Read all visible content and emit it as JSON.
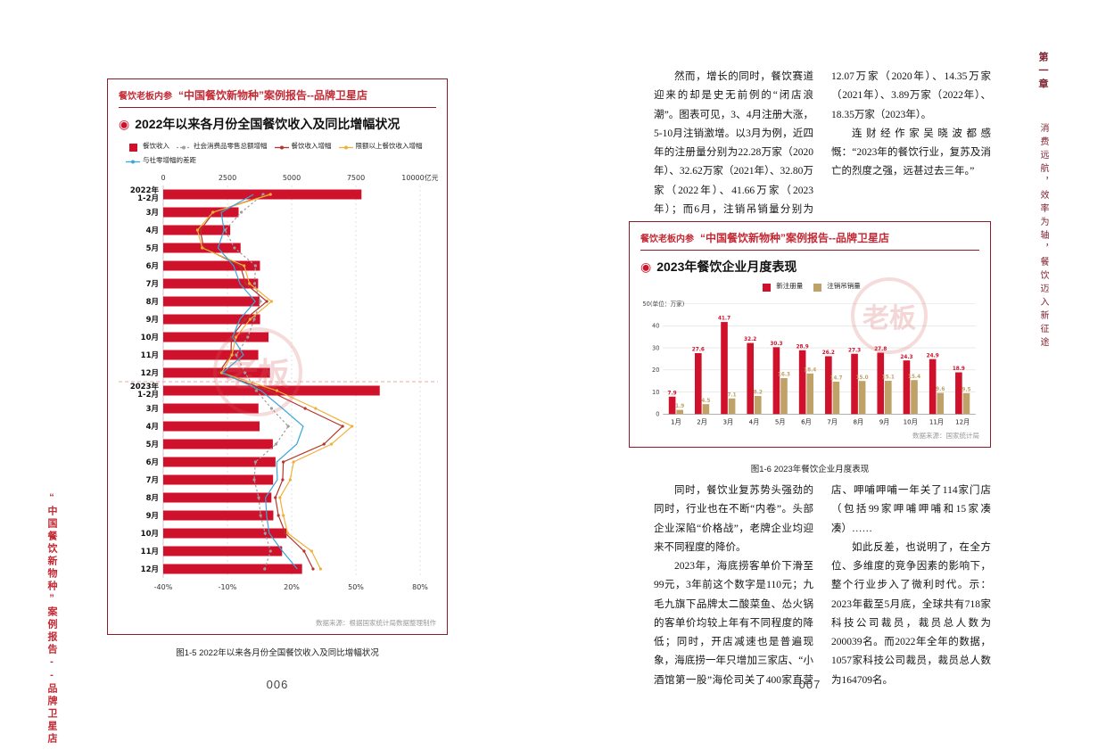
{
  "accent_colors": {
    "bar_red": "#d0112b",
    "header_red": "#c22a35",
    "box_border": "#8c1c2c",
    "tan": "#bfa268",
    "orange": "#f0b13c",
    "dark_red_line": "#b5342c",
    "blue": "#3aa7d9",
    "gray_line": "#9e9e9e"
  },
  "left_page": {
    "margin_text": "“中国餐饮新物种”案例报告--品牌卫星店",
    "page_number": "006",
    "box": {
      "brand": "餐饮老板内参",
      "header": "“中国餐饮新物种”案例报告--品牌卫星店",
      "title": "2022年以来各月份全国餐饮收入及同比增幅状况",
      "watermark": "老板",
      "legend": [
        {
          "label": "餐饮收入",
          "type": "bar",
          "color": "#d0112b"
        },
        {
          "label": "社会消费品零售总额增幅",
          "type": "line",
          "dashed": true,
          "color": "#9e9e9e"
        },
        {
          "label": "餐饮收入增幅",
          "type": "line",
          "dashed": false,
          "color": "#b5342c"
        },
        {
          "label": "限额以上餐饮收入增幅",
          "type": "line",
          "dashed": false,
          "color": "#f0b13c"
        },
        {
          "label": "与社零增幅的差距",
          "type": "line",
          "dashed": false,
          "color": "#3aa7d9"
        }
      ]
    },
    "caption": "图1-5 2022年以来各月份全国餐饮收入及同比增幅状况"
  },
  "right_page": {
    "page_number": "007",
    "chapter_vertical": {
      "part1": "第一章",
      "part2": "消费远航，效率为轴，餐饮迈入新征途"
    },
    "top_text": {
      "p1": "然而，增长的同时，餐饮赛道迎来的却是史无前例的“闭店浪潮”。图表可见，3、4月注册大涨，5-10月注销激增。以3月为例，近四年的注册量分别为22.28万家（2020年）、32.62万家（2021年）、32.80万家（2022年）、41.66万家（2023年）；而6月，注销吊销量分别为12.07万家（2020年）、14.35万家（2021年）、3.89万家（2022年）、18.35万家（2023年）。",
      "p2": "连财经作家吴晓波都感慨：“2023年的餐饮行业，复苏及消亡的烈度之强，远甚过去三年。”"
    },
    "box": {
      "brand": "餐饮老板内参",
      "header": "“中国餐饮新物种”案例报告--品牌卫星店",
      "title": "2023年餐饮企业月度表现",
      "watermark": "老板",
      "legend": [
        {
          "label": "新注册量",
          "type": "bar",
          "color": "#d0112b"
        },
        {
          "label": "注销吊销量",
          "type": "bar",
          "color": "#bfa268"
        }
      ]
    },
    "caption": "图1-6 2023年餐饮企业月度表现",
    "bottom_text": {
      "p1": "同时，餐饮业复苏势头强劲的同时，行业也在不断“内卷”。头部企业深陷“价格战”，老牌企业均迎来不同程度的降价。",
      "p2": "2023年，海底捞客单价下滑至99元，3年前这个数字是110元；九毛九旗下品牌太二酸菜鱼、怂火锅的客单价均较上年有不同程度的降低；同时，开店减速也是普遍现象，海底捞一年只增加三家店、“小酒馆第一股”海伦司关了400家直营店、呷哺呷哺一年关了114家门店（包括99家呷哺呷哺和15家凑凑）……",
      "p3": "如此反差，也说明了，在全方位、多维度的竞争因素的影响下，整个行业步入了微利时代。示：2023年截至5月底，全球共有718家科技公司裁员，裁员总人数为200039名。而2022年全年的数据，1057家科技公司裁员，裁员总人数为164709名。"
    }
  },
  "chart_data": [
    {
      "type": "bar",
      "orientation": "horizontal",
      "title": "2022年以来各月份全国餐饮收入及同比增幅状况",
      "categories": [
        "2022年|1-2月",
        "3月",
        "4月",
        "5月",
        "6月",
        "7月",
        "8月",
        "9月",
        "10月",
        "11月",
        "12月",
        "2023年|1-2月",
        "3月",
        "4月",
        "5月",
        "6月",
        "7月",
        "8月",
        "9月",
        "10月",
        "11月",
        "12月"
      ],
      "bar_series": {
        "name": "餐饮收入",
        "unit": "亿元",
        "color": "#d0112b",
        "values": [
          7718,
          2935,
          2609,
          3012,
          3766,
          3694,
          3748,
          3770,
          4099,
          3701,
          4157,
          8429,
          3707,
          3751,
          4267,
          4371,
          4277,
          4212,
          4287,
          4800,
          4628,
          5405
        ]
      },
      "top_axis": {
        "ticks": [
          0,
          2500,
          5000,
          7500,
          10000
        ],
        "labels": [
          "0",
          "2500",
          "5000",
          "7500",
          "10000亿元"
        ]
      },
      "bottom_axis": {
        "min": -40,
        "max": 80,
        "ticks": [
          -40,
          -10,
          20,
          50,
          80
        ],
        "labels": [
          "-40%",
          "-10%",
          "20%",
          "50%",
          "80%"
        ]
      },
      "line_series": [
        {
          "name": "社会消费品零售总额增幅",
          "color": "#9e9e9e",
          "dashed": true,
          "markers": true,
          "values": [
            6.7,
            -3.5,
            -11.1,
            -6.7,
            3.1,
            2.7,
            5.4,
            2.5,
            -0.5,
            -5.9,
            -1.8,
            3.5,
            10.6,
            18.4,
            12.7,
            3.1,
            2.5,
            4.6,
            5.5,
            7.6,
            10.1,
            7.4
          ]
        },
        {
          "name": "餐饮收入增幅",
          "color": "#b5342c",
          "dashed": false,
          "markers": true,
          "values": [
            8.9,
            -16.4,
            -22.7,
            -21.1,
            -4.0,
            -1.5,
            8.4,
            -1.7,
            -8.1,
            -8.4,
            -14.1,
            9.2,
            26.3,
            43.8,
            35.1,
            16.1,
            15.8,
            12.4,
            13.8,
            17.1,
            25.8,
            30.0
          ]
        },
        {
          "name": "限额以上餐饮收入增幅",
          "color": "#f0b13c",
          "dashed": false,
          "markers": true,
          "values": [
            10.1,
            -16.8,
            -24.0,
            -21.8,
            -2.2,
            0.3,
            10.6,
            0.6,
            -6.0,
            -7.9,
            -12.7,
            13.1,
            31.2,
            48.2,
            38.6,
            20.9,
            19.3,
            14.5,
            16.1,
            18.2,
            29.3,
            33.5
          ]
        },
        {
          "name": "与社零增幅的差距",
          "color": "#3aa7d9",
          "dashed": false,
          "markers": false,
          "values": [
            2.2,
            -12.9,
            -11.6,
            -14.4,
            -7.1,
            -4.2,
            3.0,
            -4.2,
            -7.6,
            -2.5,
            -12.3,
            5.7,
            15.7,
            25.4,
            22.4,
            13.0,
            13.3,
            7.8,
            8.3,
            9.5,
            15.7,
            22.6
          ]
        }
      ],
      "separator_after_index": 10,
      "source": "数据来源：根据国家统计局数据整理制作"
    },
    {
      "type": "bar",
      "grouped": true,
      "title": "2023年餐饮企业月度表现",
      "categories": [
        "1月",
        "2月",
        "3月",
        "4月",
        "5月",
        "6月",
        "7月",
        "8月",
        "9月",
        "10月",
        "11月",
        "12月"
      ],
      "series": [
        {
          "name": "新注册量",
          "color": "#d0112b",
          "values": [
            7.9,
            27.6,
            41.7,
            32.2,
            30.3,
            28.9,
            26.2,
            27.3,
            27.8,
            24.3,
            24.9,
            18.9
          ]
        },
        {
          "name": "注销吊销量",
          "color": "#bfa268",
          "values": [
            1.9,
            4.5,
            7.1,
            8.2,
            16.3,
            18.4,
            14.7,
            15.0,
            15.1,
            15.4,
            9.6,
            9.5
          ]
        }
      ],
      "ylim": [
        0,
        50
      ],
      "y_ticks": [
        0,
        10,
        20,
        30,
        40,
        50
      ],
      "y_tick_labels": [
        "0",
        "10",
        "20",
        "30",
        "40",
        "50(单位：万家)"
      ],
      "source": "数据来源：国家统计局"
    }
  ]
}
